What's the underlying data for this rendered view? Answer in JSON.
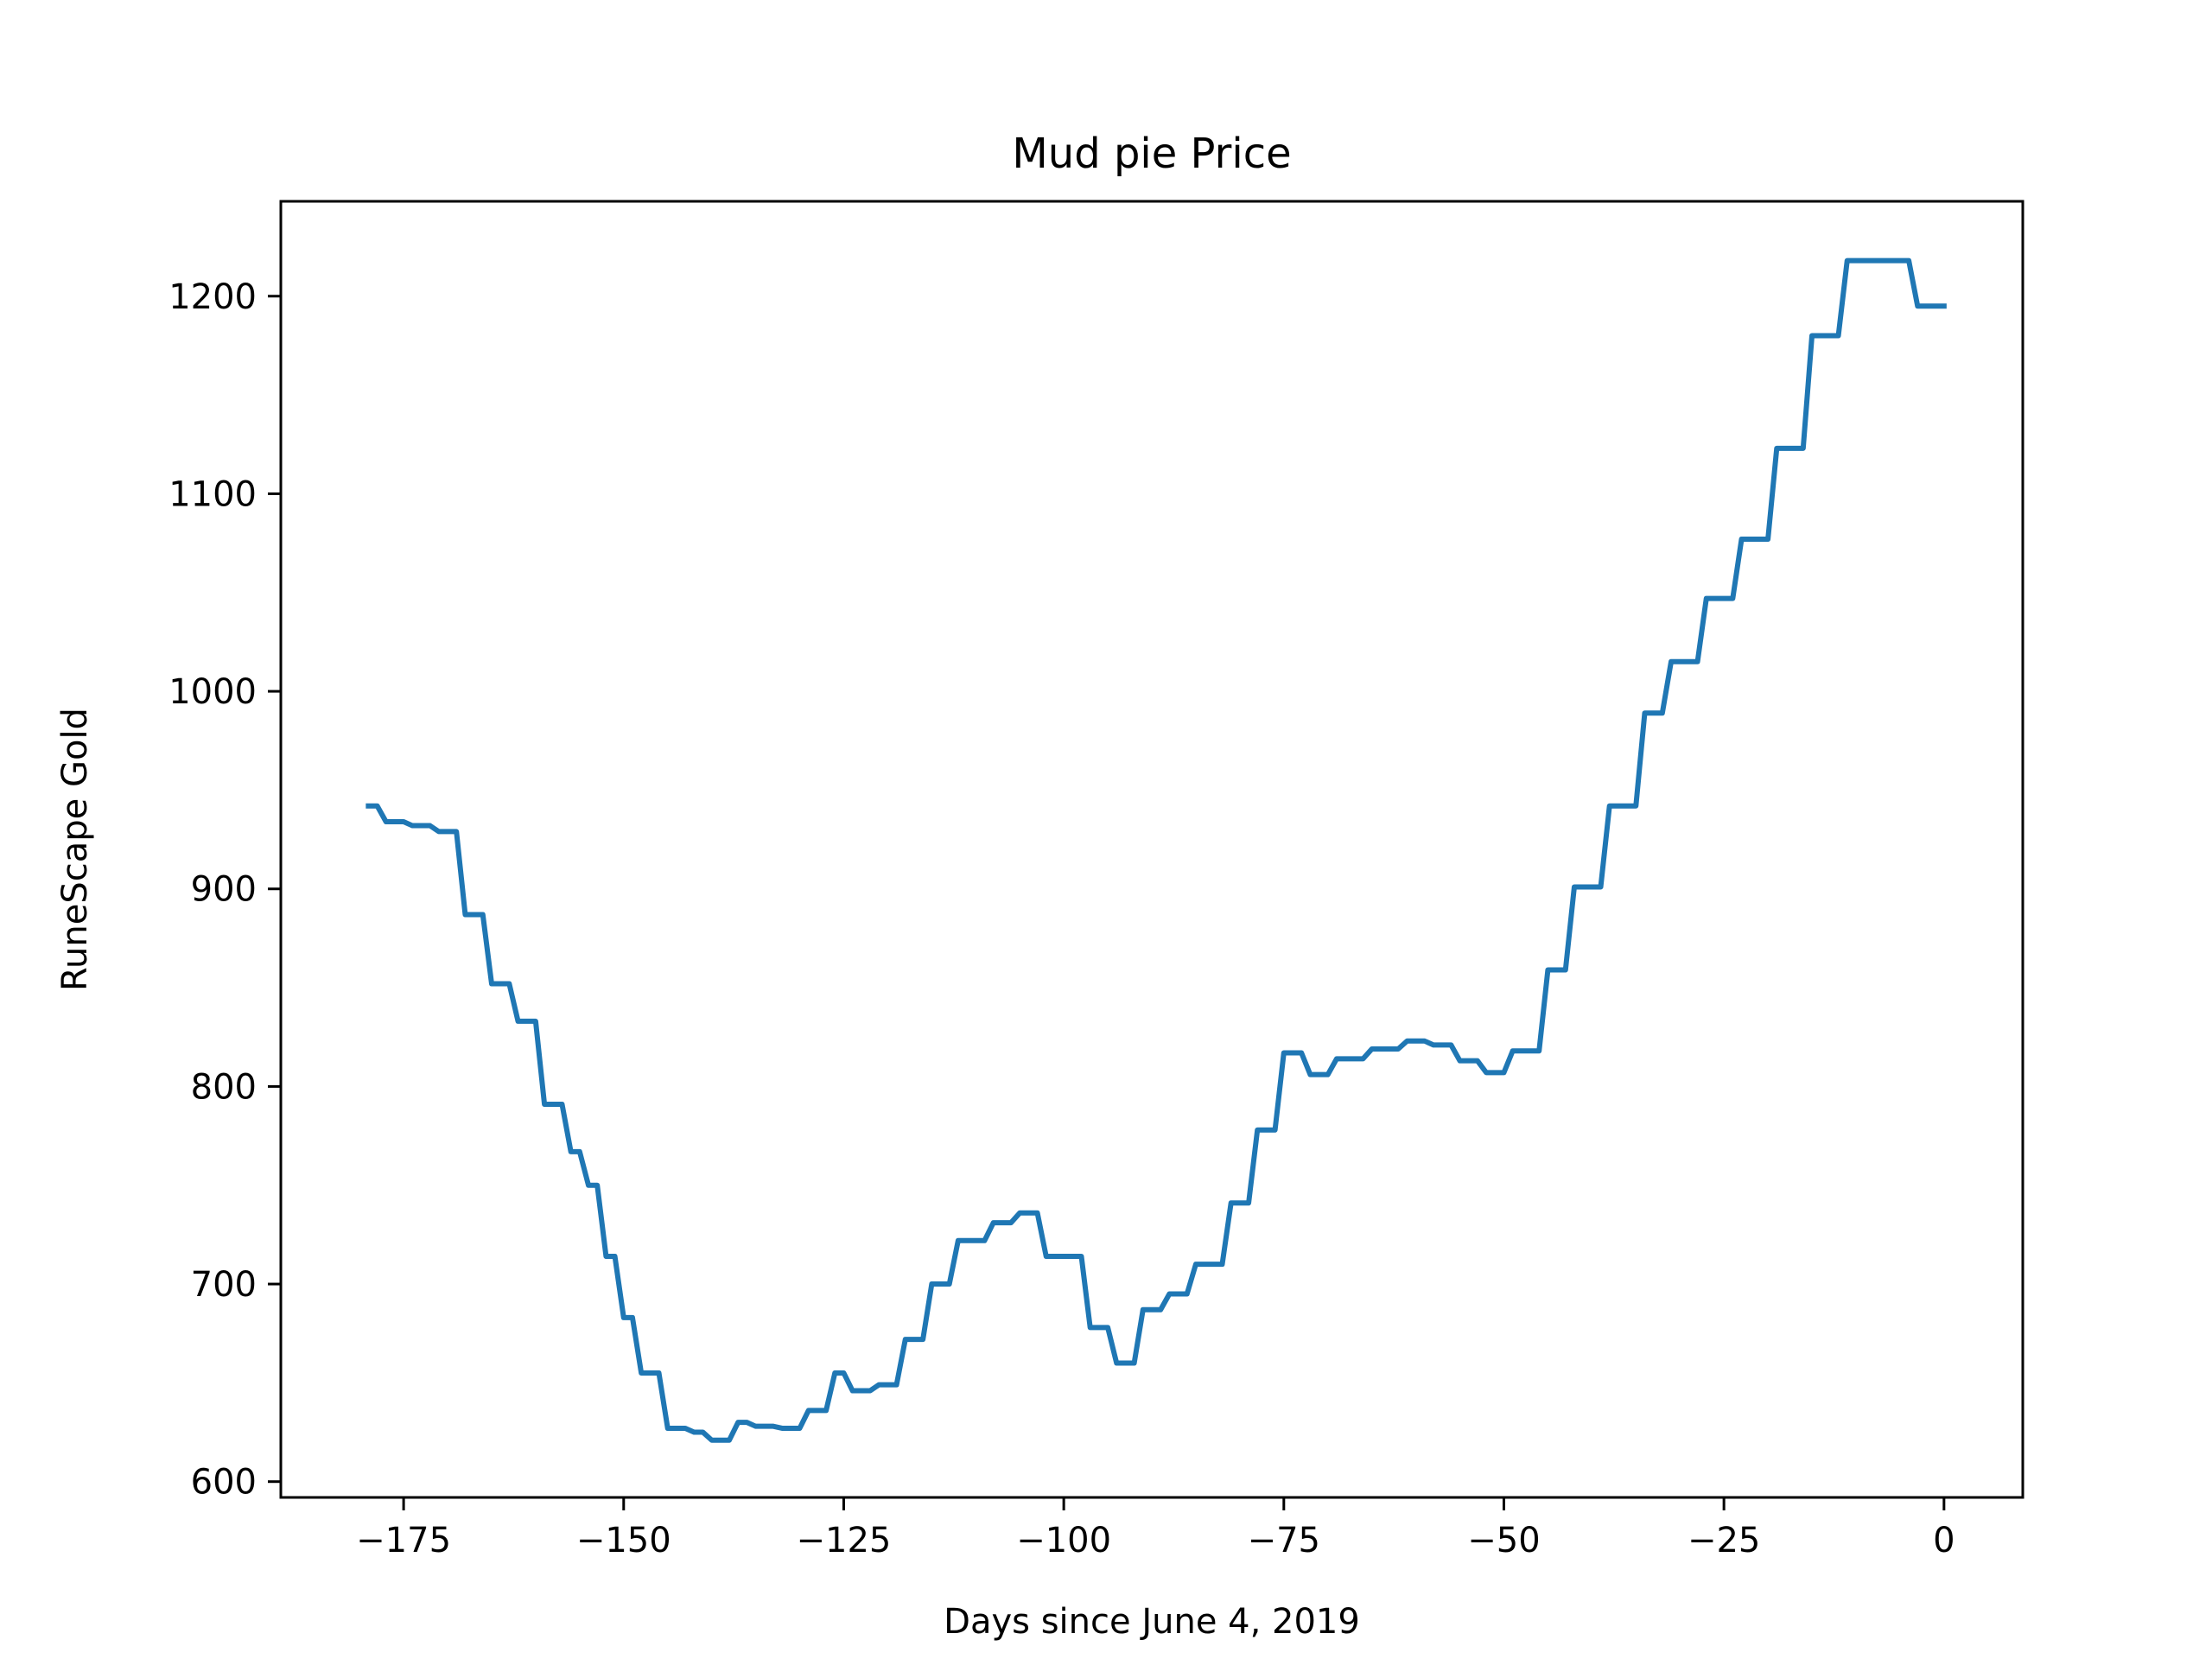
{
  "chart_data": {
    "type": "line",
    "title": "Mud pie Price",
    "xlabel": "Days since June 4, 2019",
    "ylabel": "RuneScape Gold",
    "xlim": [
      -188.95,
      8.95
    ],
    "ylim": [
      592,
      1248
    ],
    "x_ticks": [
      -175,
      -150,
      -125,
      -100,
      -75,
      -50,
      -25,
      0
    ],
    "x_tick_labels": [
      "−175",
      "−150",
      "−125",
      "−100",
      "−75",
      "−50",
      "−25",
      "0"
    ],
    "y_ticks": [
      600,
      700,
      800,
      900,
      1000,
      1100,
      1200
    ],
    "y_tick_labels": [
      "600",
      "700",
      "800",
      "900",
      "1000",
      "1100",
      "1200"
    ],
    "grid": false,
    "series": [
      {
        "color": "#1f77b4",
        "points": [
          [
            -179,
            942
          ],
          [
            -178,
            942
          ],
          [
            -177,
            934
          ],
          [
            -175,
            934
          ],
          [
            -174,
            932
          ],
          [
            -172,
            932
          ],
          [
            -171,
            929
          ],
          [
            -169,
            929
          ],
          [
            -168,
            887
          ],
          [
            -166,
            887
          ],
          [
            -165,
            852
          ],
          [
            -163,
            852
          ],
          [
            -162,
            833
          ],
          [
            -160,
            833
          ],
          [
            -159,
            791
          ],
          [
            -157,
            791
          ],
          [
            -156,
            767
          ],
          [
            -155,
            767
          ],
          [
            -154,
            750
          ],
          [
            -153,
            750
          ],
          [
            -152,
            714
          ],
          [
            -151,
            714
          ],
          [
            -150,
            683
          ],
          [
            -149,
            683
          ],
          [
            -148,
            655
          ],
          [
            -146,
            655
          ],
          [
            -145,
            627
          ],
          [
            -143,
            627
          ],
          [
            -142,
            625
          ],
          [
            -141,
            625
          ],
          [
            -140,
            621
          ],
          [
            -138,
            621
          ],
          [
            -137,
            630
          ],
          [
            -136,
            630
          ],
          [
            -135,
            628
          ],
          [
            -133,
            628
          ],
          [
            -132,
            627
          ],
          [
            -130,
            627
          ],
          [
            -129,
            636
          ],
          [
            -127,
            636
          ],
          [
            -126,
            655
          ],
          [
            -125,
            655
          ],
          [
            -124,
            646
          ],
          [
            -122,
            646
          ],
          [
            -121,
            649
          ],
          [
            -119,
            649
          ],
          [
            -118,
            672
          ],
          [
            -116,
            672
          ],
          [
            -115,
            700
          ],
          [
            -113,
            700
          ],
          [
            -112,
            722
          ],
          [
            -109,
            722
          ],
          [
            -108,
            731
          ],
          [
            -106,
            731
          ],
          [
            -105,
            736
          ],
          [
            -103,
            736
          ],
          [
            -102,
            714
          ],
          [
            -98,
            714
          ],
          [
            -97,
            678
          ],
          [
            -95,
            678
          ],
          [
            -94,
            660
          ],
          [
            -92,
            660
          ],
          [
            -91,
            687
          ],
          [
            -89,
            687
          ],
          [
            -88,
            695
          ],
          [
            -86,
            695
          ],
          [
            -85,
            710
          ],
          [
            -82,
            710
          ],
          [
            -81,
            741
          ],
          [
            -79,
            741
          ],
          [
            -78,
            778
          ],
          [
            -76,
            778
          ],
          [
            -75,
            817
          ],
          [
            -73,
            817
          ],
          [
            -72,
            806
          ],
          [
            -70,
            806
          ],
          [
            -69,
            814
          ],
          [
            -66,
            814
          ],
          [
            -65,
            819
          ],
          [
            -62,
            819
          ],
          [
            -61,
            823
          ],
          [
            -59,
            823
          ],
          [
            -58,
            821
          ],
          [
            -56,
            821
          ],
          [
            -55,
            813
          ],
          [
            -53,
            813
          ],
          [
            -52,
            807
          ],
          [
            -50,
            807
          ],
          [
            -49,
            818
          ],
          [
            -46,
            818
          ],
          [
            -45,
            859
          ],
          [
            -43,
            859
          ],
          [
            -42,
            901
          ],
          [
            -39,
            901
          ],
          [
            -38,
            942
          ],
          [
            -35,
            942
          ],
          [
            -34,
            989
          ],
          [
            -32,
            989
          ],
          [
            -31,
            1015
          ],
          [
            -28,
            1015
          ],
          [
            -27,
            1047
          ],
          [
            -24,
            1047
          ],
          [
            -23,
            1077
          ],
          [
            -20,
            1077
          ],
          [
            -19,
            1123
          ],
          [
            -16,
            1123
          ],
          [
            -15,
            1180
          ],
          [
            -12,
            1180
          ],
          [
            -11,
            1218
          ],
          [
            -4,
            1218
          ],
          [
            -3,
            1195
          ],
          [
            0,
            1195
          ]
        ]
      }
    ]
  }
}
